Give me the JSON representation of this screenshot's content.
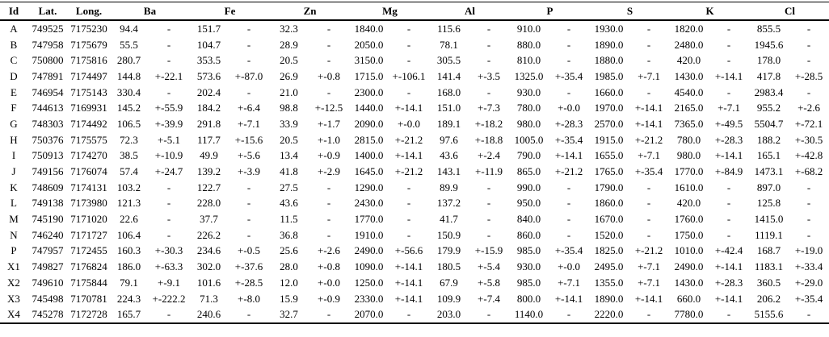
{
  "table": {
    "header": {
      "id": "Id",
      "lat": "Lat.",
      "long": "Long."
    },
    "elements": [
      "Ba",
      "Fe",
      "Zn",
      "Mg",
      "Al",
      "P",
      "S",
      "K",
      "Cl"
    ],
    "rows": [
      {
        "id": "A",
        "lat": "749525",
        "long": "7175230",
        "values": [
          "94.4",
          "-",
          "151.7",
          "-",
          "32.3",
          "-",
          "1840.0",
          "-",
          "115.6",
          "-",
          "910.0",
          "-",
          "1930.0",
          "-",
          "1820.0",
          "-",
          "855.5",
          "-"
        ]
      },
      {
        "id": "B",
        "lat": "747958",
        "long": "7175679",
        "values": [
          "55.5",
          "-",
          "104.7",
          "-",
          "28.9",
          "-",
          "2050.0",
          "-",
          "78.1",
          "-",
          "880.0",
          "-",
          "1890.0",
          "-",
          "2480.0",
          "-",
          "1945.6",
          "-"
        ]
      },
      {
        "id": "C",
        "lat": "750800",
        "long": "7175816",
        "values": [
          "280.7",
          "-",
          "353.5",
          "-",
          "20.5",
          "-",
          "3150.0",
          "-",
          "305.5",
          "-",
          "810.0",
          "-",
          "1880.0",
          "-",
          "420.0",
          "-",
          "178.0",
          "-"
        ]
      },
      {
        "id": "D",
        "lat": "747891",
        "long": "7174497",
        "values": [
          "144.8",
          "+-22.1",
          "573.6",
          "+-87.0",
          "26.9",
          "+-0.8",
          "1715.0",
          "+-106.1",
          "141.4",
          "+-3.5",
          "1325.0",
          "+-35.4",
          "1985.0",
          "+-7.1",
          "1430.0",
          "+-14.1",
          "417.8",
          "+-28.5"
        ]
      },
      {
        "id": "E",
        "lat": "746954",
        "long": "7175143",
        "values": [
          "330.4",
          "-",
          "202.4",
          "-",
          "21.0",
          "-",
          "2300.0",
          "-",
          "168.0",
          "-",
          "930.0",
          "-",
          "1660.0",
          "-",
          "4540.0",
          "-",
          "2983.4",
          "-"
        ]
      },
      {
        "id": "F",
        "lat": "744613",
        "long": "7169931",
        "values": [
          "145.2",
          "+-55.9",
          "184.2",
          "+-6.4",
          "98.8",
          "+-12.5",
          "1440.0",
          "+-14.1",
          "151.0",
          "+-7.3",
          "780.0",
          "+-0.0",
          "1970.0",
          "+-14.1",
          "2165.0",
          "+-7.1",
          "955.2",
          "+-2.6"
        ]
      },
      {
        "id": "G",
        "lat": "748303",
        "long": "7174492",
        "values": [
          "106.5",
          "+-39.9",
          "291.8",
          "+-7.1",
          "33.9",
          "+-1.7",
          "2090.0",
          "+-0.0",
          "189.1",
          "+-18.2",
          "980.0",
          "+-28.3",
          "2570.0",
          "+-14.1",
          "7365.0",
          "+-49.5",
          "5504.7",
          "+-72.1"
        ]
      },
      {
        "id": "H",
        "lat": "750376",
        "long": "7175575",
        "values": [
          "72.3",
          "+-5.1",
          "117.7",
          "+-15.6",
          "20.5",
          "+-1.0",
          "2815.0",
          "+-21.2",
          "97.6",
          "+-18.8",
          "1005.0",
          "+-35.4",
          "1915.0",
          "+-21.2",
          "780.0",
          "+-28.3",
          "188.2",
          "+-30.5"
        ]
      },
      {
        "id": "I",
        "lat": "750913",
        "long": "7174270",
        "values": [
          "38.5",
          "+-10.9",
          "49.9",
          "+-5.6",
          "13.4",
          "+-0.9",
          "1400.0",
          "+-14.1",
          "43.6",
          "+-2.4",
          "790.0",
          "+-14.1",
          "1655.0",
          "+-7.1",
          "980.0",
          "+-14.1",
          "165.1",
          "+-42.8"
        ]
      },
      {
        "id": "J",
        "lat": "749156",
        "long": "7176074",
        "values": [
          "57.4",
          "+-24.7",
          "139.2",
          "+-3.9",
          "41.8",
          "+-2.9",
          "1645.0",
          "+-21.2",
          "143.1",
          "+-11.9",
          "865.0",
          "+-21.2",
          "1765.0",
          "+-35.4",
          "1770.0",
          "+-84.9",
          "1473.1",
          "+-68.2"
        ]
      },
      {
        "id": "K",
        "lat": "748609",
        "long": "7174131",
        "values": [
          "103.2",
          "-",
          "122.7",
          "-",
          "27.5",
          "-",
          "1290.0",
          "-",
          "89.9",
          "-",
          "990.0",
          "-",
          "1790.0",
          "-",
          "1610.0",
          "-",
          "897.0",
          "-"
        ]
      },
      {
        "id": "L",
        "lat": "749138",
        "long": "7173980",
        "values": [
          "121.3",
          "-",
          "228.0",
          "-",
          "43.6",
          "-",
          "2430.0",
          "-",
          "137.2",
          "-",
          "950.0",
          "-",
          "1860.0",
          "-",
          "420.0",
          "-",
          "125.8",
          "-"
        ]
      },
      {
        "id": "M",
        "lat": "745190",
        "long": "7171020",
        "values": [
          "22.6",
          "-",
          "37.7",
          "-",
          "11.5",
          "-",
          "1770.0",
          "-",
          "41.7",
          "-",
          "840.0",
          "-",
          "1670.0",
          "-",
          "1760.0",
          "-",
          "1415.0",
          "-"
        ]
      },
      {
        "id": "N",
        "lat": "746240",
        "long": "7171727",
        "values": [
          "106.4",
          "-",
          "226.2",
          "-",
          "36.8",
          "-",
          "1910.0",
          "-",
          "150.9",
          "-",
          "860.0",
          "-",
          "1520.0",
          "-",
          "1750.0",
          "-",
          "1119.1",
          "-"
        ]
      },
      {
        "id": "P",
        "lat": "747957",
        "long": "7172455",
        "values": [
          "160.3",
          "+-30.3",
          "234.6",
          "+-0.5",
          "25.6",
          "+-2.6",
          "2490.0",
          "+-56.6",
          "179.9",
          "+-15.9",
          "985.0",
          "+-35.4",
          "1825.0",
          "+-21.2",
          "1010.0",
          "+-42.4",
          "168.7",
          "+-19.0"
        ]
      },
      {
        "id": "X1",
        "lat": "749827",
        "long": "7176824",
        "values": [
          "186.0",
          "+-63.3",
          "302.0",
          "+-37.6",
          "28.0",
          "+-0.8",
          "1090.0",
          "+-14.1",
          "180.5",
          "+-5.4",
          "930.0",
          "+-0.0",
          "2495.0",
          "+-7.1",
          "2490.0",
          "+-14.1",
          "1183.1",
          "+-33.4"
        ]
      },
      {
        "id": "X2",
        "lat": "749610",
        "long": "7175844",
        "values": [
          "79.1",
          "+-9.1",
          "101.6",
          "+-28.5",
          "12.0",
          "+-0.0",
          "1250.0",
          "+-14.1",
          "67.9",
          "+-5.8",
          "985.0",
          "+-7.1",
          "1355.0",
          "+-7.1",
          "1430.0",
          "+-28.3",
          "360.5",
          "+-29.0"
        ]
      },
      {
        "id": "X3",
        "lat": "745498",
        "long": "7170781",
        "values": [
          "224.3",
          "+-222.2",
          "71.3",
          "+-8.0",
          "15.9",
          "+-0.9",
          "2330.0",
          "+-14.1",
          "109.9",
          "+-7.4",
          "800.0",
          "+-14.1",
          "1890.0",
          "+-14.1",
          "660.0",
          "+-14.1",
          "206.2",
          "+-35.4"
        ]
      },
      {
        "id": "X4",
        "lat": "745278",
        "long": "7172728",
        "values": [
          "165.7",
          "-",
          "240.6",
          "-",
          "32.7",
          "-",
          "2070.0",
          "-",
          "203.0",
          "-",
          "1140.0",
          "-",
          "2220.0",
          "-",
          "7780.0",
          "-",
          "5155.6",
          "-"
        ]
      }
    ]
  }
}
